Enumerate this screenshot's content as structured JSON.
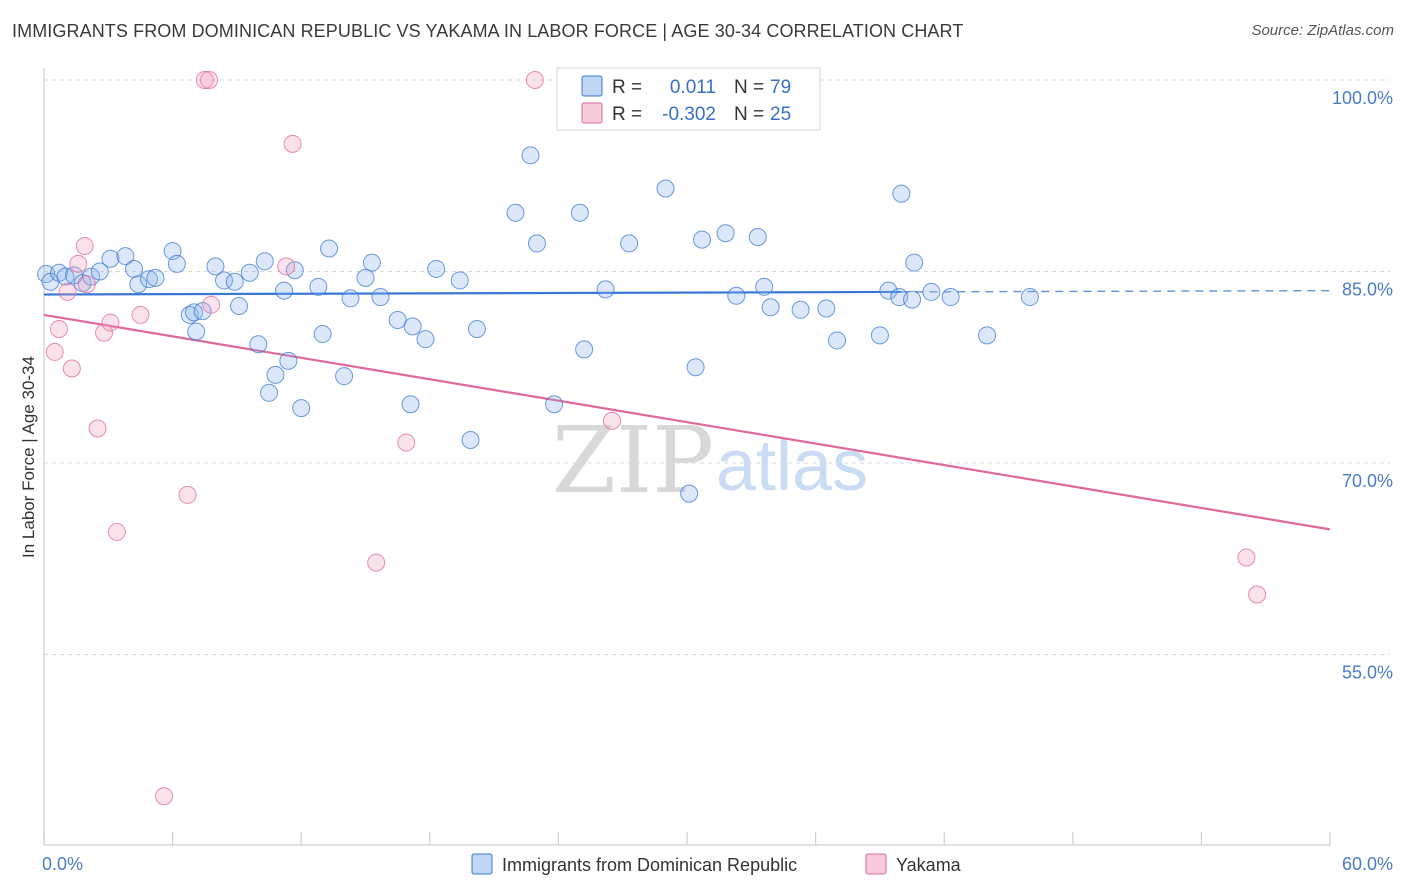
{
  "title": "IMMIGRANTS FROM DOMINICAN REPUBLIC VS YAKAMA IN LABOR FORCE | AGE 30-34 CORRELATION CHART",
  "source": "Source: ZipAtlas.com",
  "watermark": {
    "zip": "ZIP",
    "atlas": "atlas"
  },
  "colors": {
    "blue": "#3a78d4",
    "blue_fill": "rgba(140,180,235,0.30)",
    "pink": "#e0689a",
    "pink_fill": "rgba(240,160,190,0.30)",
    "grid": "#d9d9d9",
    "tick_label": "#4a7cc7"
  },
  "legend": {
    "rows": [
      {
        "r_label": "R =",
        "r_value": "0.011",
        "n_label": "N =",
        "n_value": "79"
      },
      {
        "r_label": "R =",
        "r_value": "-0.302",
        "n_label": "N =",
        "n_value": "25"
      }
    ]
  },
  "chart_data": {
    "type": "scatter",
    "xlabel": "",
    "ylabel": "In Labor Force | Age 30-34",
    "xlim": [
      0,
      60
    ],
    "ylim": [
      40,
      102
    ],
    "x_tick_labels": [
      {
        "value": 0,
        "label": "0.0%"
      },
      {
        "value": 60,
        "label": "60.0%"
      }
    ],
    "y_tick_labels": [
      {
        "value": 100,
        "label": "100.0%"
      },
      {
        "value": 85,
        "label": "85.0%"
      },
      {
        "value": 70,
        "label": "70.0%"
      },
      {
        "value": 55,
        "label": "55.0%"
      }
    ],
    "y_gridlines": [
      100,
      85,
      70,
      55
    ],
    "series": [
      {
        "name": "Immigrants from Dominican Republic",
        "color": "blue",
        "trend": {
          "x0": 0,
          "y0": 83.2,
          "x1": 40,
          "y1": 83.4,
          "dash_to": 60,
          "dash_y": 83.5
        },
        "points": [
          [
            0.1,
            84.8
          ],
          [
            0.3,
            84.2
          ],
          [
            0.7,
            84.9
          ],
          [
            1.0,
            84.6
          ],
          [
            1.4,
            84.7
          ],
          [
            1.8,
            84.1
          ],
          [
            2.2,
            84.6
          ],
          [
            2.6,
            85.0
          ],
          [
            3.1,
            86.0
          ],
          [
            3.8,
            86.2
          ],
          [
            4.2,
            85.2
          ],
          [
            4.4,
            84.0
          ],
          [
            4.9,
            84.4
          ],
          [
            5.2,
            84.5
          ],
          [
            6.0,
            86.6
          ],
          [
            6.2,
            85.6
          ],
          [
            6.8,
            81.6
          ],
          [
            7.1,
            80.3
          ],
          [
            7.0,
            81.8
          ],
          [
            7.4,
            81.9
          ],
          [
            8.0,
            85.4
          ],
          [
            8.4,
            84.3
          ],
          [
            8.9,
            84.2
          ],
          [
            9.1,
            82.3
          ],
          [
            9.6,
            84.9
          ],
          [
            10.0,
            79.3
          ],
          [
            10.3,
            85.8
          ],
          [
            10.5,
            75.5
          ],
          [
            10.8,
            76.9
          ],
          [
            11.2,
            83.5
          ],
          [
            11.4,
            78.0
          ],
          [
            11.7,
            85.1
          ],
          [
            12.0,
            74.3
          ],
          [
            12.8,
            83.8
          ],
          [
            13.0,
            80.1
          ],
          [
            13.3,
            86.8
          ],
          [
            14.0,
            76.8
          ],
          [
            14.3,
            82.9
          ],
          [
            15.0,
            84.5
          ],
          [
            15.3,
            85.7
          ],
          [
            15.7,
            83.0
          ],
          [
            16.5,
            81.2
          ],
          [
            17.1,
            74.6
          ],
          [
            17.2,
            80.7
          ],
          [
            17.8,
            79.7
          ],
          [
            18.3,
            85.2
          ],
          [
            19.4,
            84.3
          ],
          [
            19.9,
            71.8
          ],
          [
            20.2,
            80.5
          ],
          [
            22.0,
            89.6
          ],
          [
            22.7,
            94.1
          ],
          [
            23.0,
            87.2
          ],
          [
            23.8,
            74.6
          ],
          [
            25.0,
            89.6
          ],
          [
            25.2,
            78.9
          ],
          [
            26.2,
            83.6
          ],
          [
            27.3,
            87.2
          ],
          [
            29.0,
            91.5
          ],
          [
            30.1,
            67.6
          ],
          [
            30.4,
            77.5
          ],
          [
            30.7,
            87.5
          ],
          [
            31.8,
            88.0
          ],
          [
            32.3,
            83.1
          ],
          [
            33.3,
            87.7
          ],
          [
            33.6,
            83.8
          ],
          [
            33.9,
            82.2
          ],
          [
            35.3,
            82.0
          ],
          [
            39.0,
            80.0
          ],
          [
            39.4,
            83.5
          ],
          [
            39.9,
            83.0
          ],
          [
            40.0,
            91.1
          ],
          [
            40.5,
            82.8
          ],
          [
            40.6,
            85.7
          ],
          [
            41.4,
            83.4
          ],
          [
            42.3,
            83.0
          ],
          [
            44.0,
            80.0
          ],
          [
            46.0,
            83.0
          ],
          [
            36.5,
            82.1
          ],
          [
            37.0,
            79.6
          ]
        ]
      },
      {
        "name": "Yakama",
        "color": "pink",
        "trend": {
          "x0": 0,
          "y0": 81.6,
          "x1": 60,
          "y1": 64.8
        },
        "points": [
          [
            0.5,
            78.7
          ],
          [
            0.7,
            80.5
          ],
          [
            1.1,
            83.4
          ],
          [
            1.3,
            77.4
          ],
          [
            1.6,
            85.6
          ],
          [
            1.9,
            87.0
          ],
          [
            2.0,
            84.0
          ],
          [
            2.5,
            72.7
          ],
          [
            2.8,
            80.2
          ],
          [
            3.1,
            81.0
          ],
          [
            3.4,
            64.6
          ],
          [
            4.5,
            81.6
          ],
          [
            5.6,
            43.9
          ],
          [
            6.7,
            67.5
          ],
          [
            7.5,
            100.0
          ],
          [
            7.7,
            100.0
          ],
          [
            7.8,
            82.4
          ],
          [
            11.3,
            85.4
          ],
          [
            11.6,
            95.0
          ],
          [
            15.5,
            62.2
          ],
          [
            16.9,
            71.6
          ],
          [
            22.9,
            100.0
          ],
          [
            26.5,
            73.3
          ],
          [
            56.1,
            62.6
          ],
          [
            56.6,
            59.7
          ]
        ]
      }
    ]
  }
}
